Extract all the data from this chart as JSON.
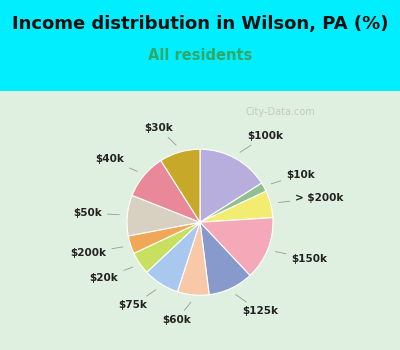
{
  "title": "Income distribution in Wilson, PA (%)",
  "subtitle": "All residents",
  "watermark": "City-Data.com",
  "slices": [
    {
      "label": "$100k",
      "value": 16,
      "color": "#b8aede"
    },
    {
      "label": "$10k",
      "value": 2,
      "color": "#90c090"
    },
    {
      "label": "> $200k",
      "value": 6,
      "color": "#f2ec70"
    },
    {
      "label": "$150k",
      "value": 14,
      "color": "#f5a8b8"
    },
    {
      "label": "$125k",
      "value": 10,
      "color": "#8899cc"
    },
    {
      "label": "$60k",
      "value": 7,
      "color": "#f8c8a8"
    },
    {
      "label": "$75k",
      "value": 8,
      "color": "#a8c8f0"
    },
    {
      "label": "$20k",
      "value": 5,
      "color": "#c8e060"
    },
    {
      "label": "$200k",
      "value": 4,
      "color": "#f0a858"
    },
    {
      "label": "$50k",
      "value": 9,
      "color": "#d8d0c0"
    },
    {
      "label": "$40k",
      "value": 10,
      "color": "#e88898"
    },
    {
      "label": "$30k",
      "value": 9,
      "color": "#c8a828"
    }
  ],
  "bg_cyan": "#00eeff",
  "bg_chart": "#e0f0e0",
  "title_color": "#111111",
  "subtitle_color": "#30a868",
  "title_fontsize": 13,
  "subtitle_fontsize": 10.5,
  "label_fontsize": 7.5
}
